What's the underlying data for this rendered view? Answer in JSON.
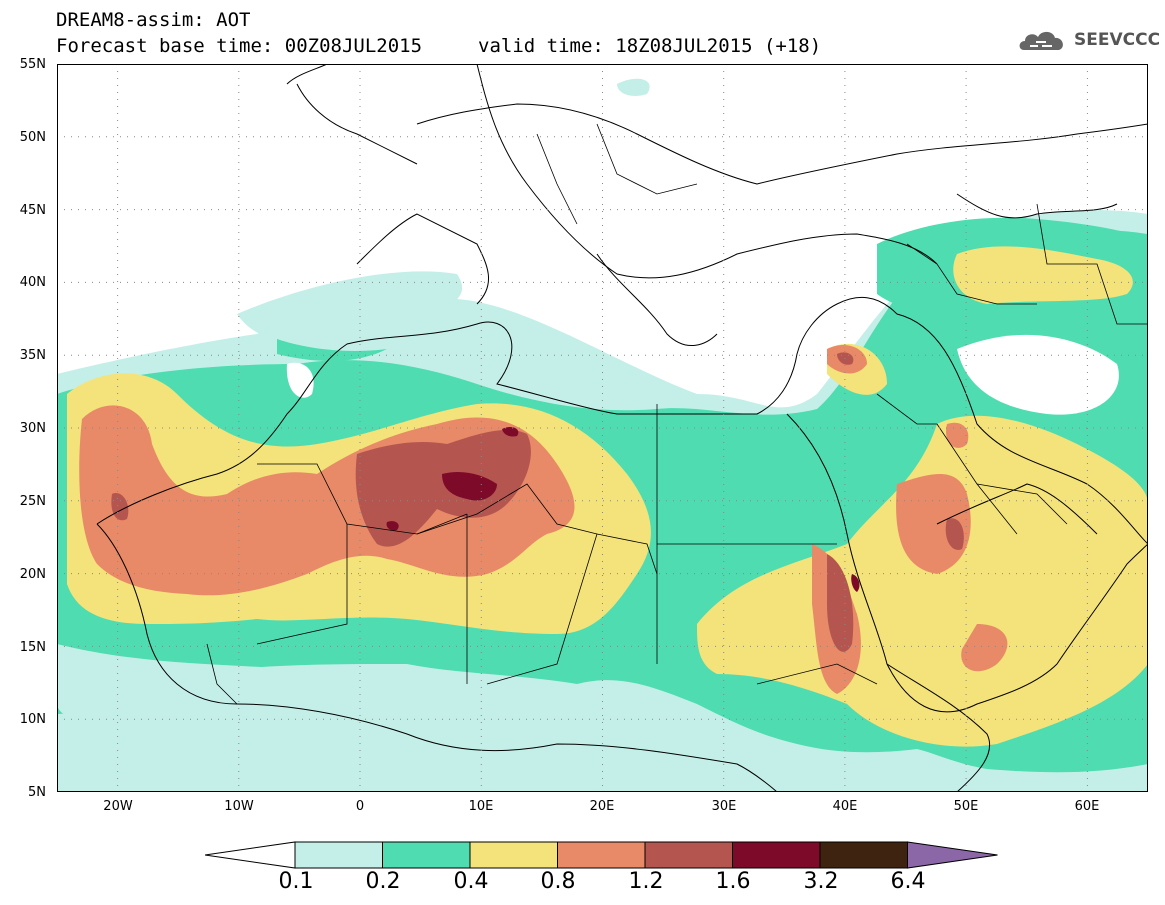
{
  "header": {
    "title": "DREAM8-assim: AOT",
    "base_time": "Forecast base time: 00Z08JUL2015",
    "valid_time": "valid time: 18Z08JUL2015 (+18)",
    "logo_text": "SEEVCCC"
  },
  "map": {
    "lat_labels": [
      "55N",
      "50N",
      "45N",
      "40N",
      "35N",
      "30N",
      "25N",
      "20N",
      "15N",
      "10N",
      "5N"
    ],
    "lon_labels": [
      "20W",
      "10W",
      "0",
      "10E",
      "20E",
      "30E",
      "40E",
      "50E",
      "60E"
    ],
    "lon_range": [
      -25,
      65
    ],
    "lat_range": [
      5,
      55
    ],
    "grid": true
  },
  "colorbar": {
    "labels": [
      "0.1",
      "0.2",
      "0.4",
      "0.8",
      "1.2",
      "1.6",
      "3.2",
      "6.4"
    ],
    "colors": [
      "#ffffff",
      "#c4efe9",
      "#4fdcb0",
      "#f4e27a",
      "#e88a68",
      "#b4564f",
      "#7e0a2a",
      "#3e2410",
      "#8c67a8"
    ]
  }
}
